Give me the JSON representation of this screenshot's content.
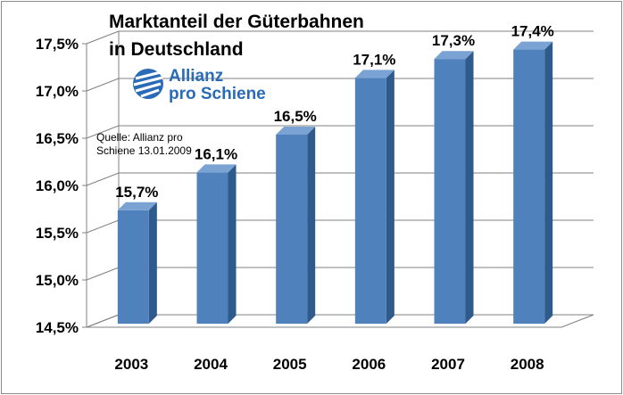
{
  "title_line1": "Marktanteil der Güterbahnen",
  "title_line2": "in Deutschland",
  "logo": {
    "line1": "Allianz",
    "line2": "pro Schiene",
    "icon": "allianz-pro-schiene-logo",
    "color": "#2a6bb8"
  },
  "source": {
    "line1": "Quelle: Allianz pro",
    "line2": "Schiene 13.01.2009"
  },
  "colors": {
    "bar_front": "#4f81bd",
    "bar_side": "#2e5a8c",
    "bar_top": "#7aa2d2",
    "grid": "#808080"
  },
  "chart_data": {
    "type": "bar",
    "categories": [
      "2003",
      "2004",
      "2005",
      "2006",
      "2007",
      "2008"
    ],
    "values": [
      15.7,
      16.1,
      16.5,
      17.1,
      17.3,
      17.4
    ],
    "data_labels": [
      "15,7%",
      "16,1%",
      "16,5%",
      "17,1%",
      "17,3%",
      "17,4%"
    ],
    "ylim": [
      14.5,
      17.5
    ],
    "yticks": [
      14.5,
      15.0,
      15.5,
      16.0,
      16.5,
      17.0,
      17.5
    ],
    "ytick_labels": [
      "14,5%",
      "15,0%",
      "15,5%",
      "16,0%",
      "16,5%",
      "17,0%",
      "17,5%"
    ],
    "grid": true,
    "legend": "none",
    "style": "3d"
  }
}
